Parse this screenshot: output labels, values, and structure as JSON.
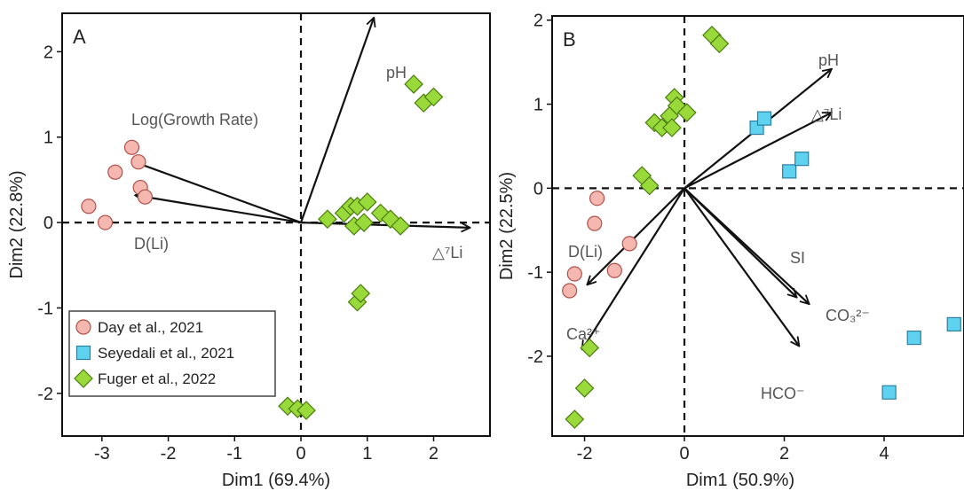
{
  "colors": {
    "day": "#f4b8b0",
    "day_stroke": "#b0504a",
    "seyedali": "#5fd2ef",
    "seyedali_stroke": "#2b7fa1",
    "fuger": "#9ad93a",
    "fuger_stroke": "#4a7d10",
    "arrow": "#111111",
    "frame": "#111111"
  },
  "legend": {
    "placement": "bottom-left",
    "panel": "A",
    "items": [
      {
        "label": "Day et al., 2021",
        "group": "day",
        "marker": "circle"
      },
      {
        "label": "Seyedali et al., 2021",
        "group": "seyedali",
        "marker": "square"
      },
      {
        "label": "Fuger et al., 2022",
        "group": "fuger",
        "marker": "diamond"
      }
    ]
  },
  "chart_data": [
    {
      "type": "scatter",
      "panel": "A",
      "xlabel": "Dim1 (69.4%)",
      "ylabel": "Dim2 (22.8%)",
      "xlim": [
        -3.6,
        2.85
      ],
      "ylim": [
        -2.5,
        2.45
      ],
      "xticks": [
        -3,
        -2,
        -1,
        0,
        1,
        2
      ],
      "yticks": [
        -2,
        -1,
        0,
        1,
        2
      ],
      "reference_lines": {
        "x": 0,
        "y": 0
      },
      "grid": false,
      "series": [
        {
          "name": "Day et al., 2021",
          "group": "day",
          "marker": "circle",
          "points": [
            [
              -3.2,
              0.19
            ],
            [
              -2.95,
              0.0
            ],
            [
              -2.8,
              0.59
            ],
            [
              -2.55,
              0.88
            ],
            [
              -2.45,
              0.71
            ],
            [
              -2.42,
              0.41
            ],
            [
              -2.35,
              0.3
            ]
          ]
        },
        {
          "name": "Fuger et al., 2022",
          "group": "fuger",
          "marker": "diamond",
          "points": [
            [
              1.7,
              1.62
            ],
            [
              1.85,
              1.4
            ],
            [
              2.0,
              1.47
            ],
            [
              0.4,
              0.04
            ],
            [
              0.65,
              0.11
            ],
            [
              0.75,
              0.19
            ],
            [
              0.8,
              -0.04
            ],
            [
              0.85,
              0.19
            ],
            [
              1.0,
              0.24
            ],
            [
              0.95,
              0.0
            ],
            [
              1.2,
              0.11
            ],
            [
              1.35,
              0.04
            ],
            [
              1.5,
              -0.04
            ],
            [
              0.85,
              -0.93
            ],
            [
              0.9,
              -0.83
            ],
            [
              -0.2,
              -2.15
            ],
            [
              -0.05,
              -2.18
            ],
            [
              0.08,
              -2.2
            ]
          ]
        }
      ],
      "vectors": [
        {
          "label": "pH",
          "x": 1.1,
          "y": 2.4
        },
        {
          "label": "Log(Growth Rate)",
          "x": -2.55,
          "y": 0.72
        },
        {
          "label": "D(Li)",
          "x": -2.5,
          "y": 0.32
        },
        {
          "label": "△⁷Li",
          "x": 2.55,
          "y": -0.06
        }
      ],
      "panel_label": "A"
    },
    {
      "type": "scatter",
      "panel": "B",
      "xlabel": "Dim1 (50.9%)",
      "ylabel": "Dim2 (22.5%)",
      "xlim": [
        -2.65,
        5.6
      ],
      "ylim": [
        -2.95,
        2.05
      ],
      "xticks": [
        -2,
        0,
        2,
        4
      ],
      "yticks": [
        -2,
        -1,
        0,
        1,
        2
      ],
      "reference_lines": {
        "x": 0,
        "y": 0
      },
      "grid": false,
      "series": [
        {
          "name": "Day et al., 2021",
          "group": "day",
          "marker": "circle",
          "points": [
            [
              -1.75,
              -0.12
            ],
            [
              -1.8,
              -0.42
            ],
            [
              -2.2,
              -1.02
            ],
            [
              -2.3,
              -1.22
            ],
            [
              -1.1,
              -0.66
            ],
            [
              -1.4,
              -0.98
            ]
          ]
        },
        {
          "name": "Seyedali et al., 2021",
          "group": "seyedali",
          "marker": "square",
          "points": [
            [
              1.45,
              0.72
            ],
            [
              1.6,
              0.83
            ],
            [
              2.1,
              0.2
            ],
            [
              2.35,
              0.35
            ],
            [
              4.1,
              -2.43
            ],
            [
              4.6,
              -1.78
            ],
            [
              5.4,
              -1.62
            ]
          ]
        },
        {
          "name": "Fuger et al., 2022",
          "group": "fuger",
          "marker": "diamond",
          "points": [
            [
              0.55,
              1.82
            ],
            [
              0.7,
              1.72
            ],
            [
              -0.2,
              1.08
            ],
            [
              -0.15,
              0.98
            ],
            [
              -0.6,
              0.78
            ],
            [
              -0.45,
              0.72
            ],
            [
              -0.3,
              0.86
            ],
            [
              -0.25,
              0.72
            ],
            [
              0.05,
              0.9
            ],
            [
              -0.85,
              0.15
            ],
            [
              -0.7,
              0.03
            ],
            [
              -1.9,
              -1.9
            ],
            [
              -2.0,
              -2.38
            ],
            [
              -2.2,
              -2.75
            ]
          ]
        }
      ],
      "vectors": [
        {
          "label": "pH",
          "x": 2.95,
          "y": 1.42
        },
        {
          "label": "△⁷Li",
          "x": 2.95,
          "y": 0.9
        },
        {
          "label": "SI",
          "x": 2.25,
          "y": -1.3
        },
        {
          "label": "CO₃²⁻",
          "x": 2.5,
          "y": -1.38
        },
        {
          "label": "HCO⁻",
          "x": 2.3,
          "y": -1.88
        },
        {
          "label": "D(Li)",
          "x": -1.95,
          "y": -1.15
        },
        {
          "label": "Ca²⁺",
          "x": -2.05,
          "y": -1.92
        }
      ],
      "panel_label": "B"
    }
  ]
}
